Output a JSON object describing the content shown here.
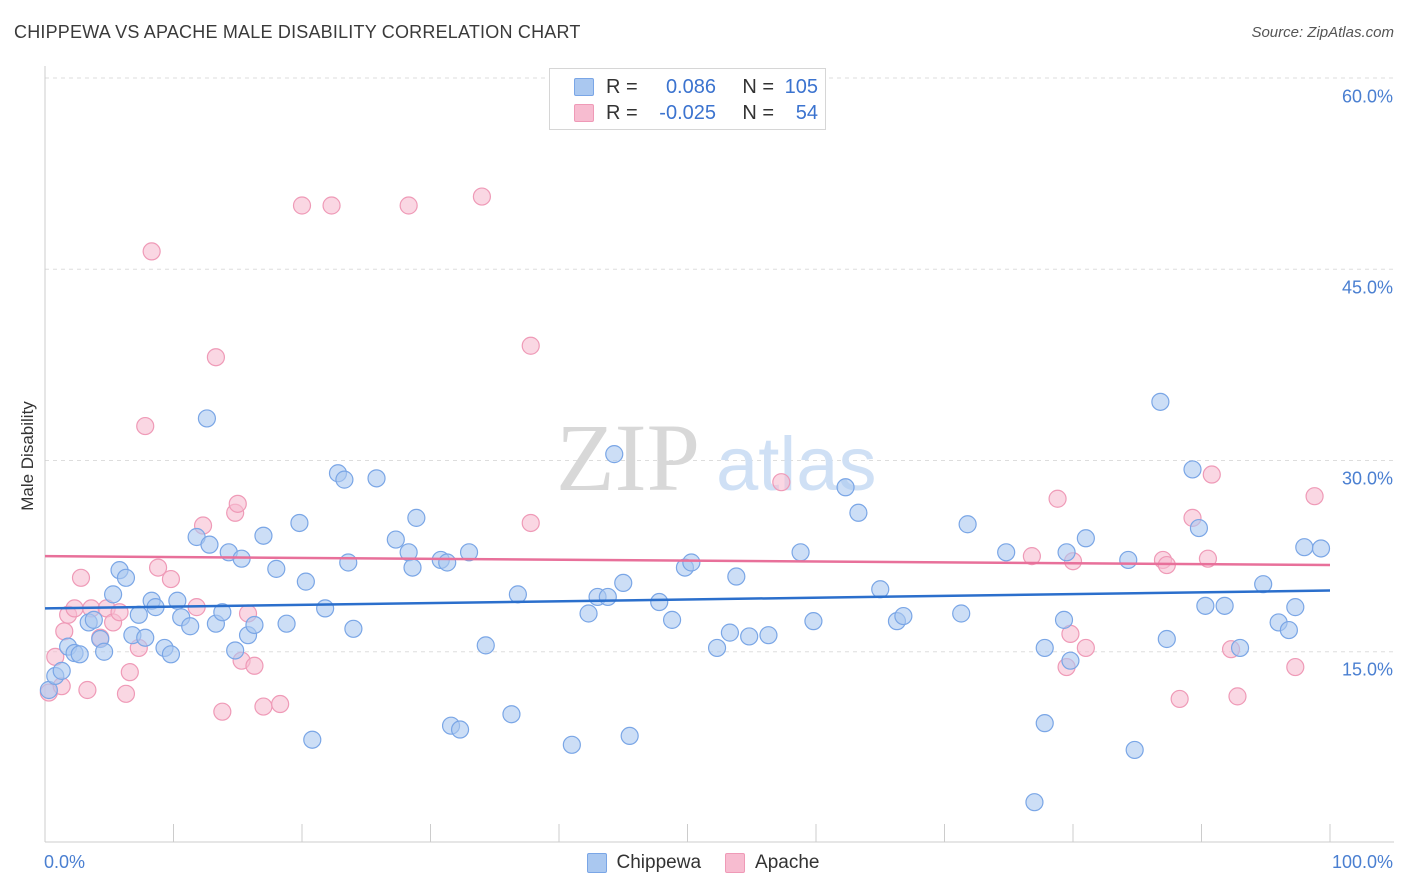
{
  "header": {
    "title": "CHIPPEWA VS APACHE MALE DISABILITY CORRELATION CHART",
    "source": "Source: ZipAtlas.com"
  },
  "legend": {
    "rows": [
      {
        "r_label": "R =",
        "r_value": "0.086",
        "n_label": "N =",
        "n_value": "105"
      },
      {
        "r_label": "R =",
        "r_value": "-0.025",
        "n_label": "N =",
        "n_value": "54"
      }
    ],
    "bottom": [
      "Chippewa",
      "Apache"
    ]
  },
  "watermark": {
    "zip": "ZIP",
    "atlas": "atlas"
  },
  "colors": {
    "chippewa_fill": "#aac8f0",
    "chippewa_stroke": "#7aa6e6",
    "chippewa_line": "#2b6fcc",
    "apache_fill": "#f7bcd0",
    "apache_stroke": "#ef9ab7",
    "apache_line": "#e8709a",
    "tick_text": "#4a7fd1",
    "grid": "#dddddd"
  },
  "chart_data": {
    "type": "scatter",
    "title": "CHIPPEWA VS APACHE MALE DISABILITY CORRELATION CHART",
    "xlabel": "",
    "ylabel": "Male Disability",
    "xlim": [
      0,
      100
    ],
    "ylim": [
      0,
      63
    ],
    "x_tick_labels": [
      "0.0%",
      "100.0%"
    ],
    "y_ticks": [
      15,
      30,
      45,
      60
    ],
    "y_tick_labels": [
      "15.0%",
      "30.0%",
      "45.0%",
      "60.0%"
    ],
    "grid": true,
    "legend_position": "top-center",
    "series": [
      {
        "name": "Chippewa",
        "r": 0.086,
        "n": 105,
        "trend": {
          "y_at_x0": 18.4,
          "y_at_x100": 19.8
        },
        "points": [
          [
            0.3,
            12.0
          ],
          [
            0.8,
            13.1
          ],
          [
            1.3,
            13.5
          ],
          [
            1.8,
            15.4
          ],
          [
            2.3,
            14.9
          ],
          [
            2.7,
            14.8
          ],
          [
            3.4,
            17.3
          ],
          [
            3.8,
            17.5
          ],
          [
            4.3,
            16.0
          ],
          [
            4.6,
            15.0
          ],
          [
            5.3,
            19.5
          ],
          [
            5.8,
            21.4
          ],
          [
            6.3,
            20.8
          ],
          [
            6.8,
            16.3
          ],
          [
            7.3,
            17.9
          ],
          [
            7.8,
            16.1
          ],
          [
            8.3,
            19.0
          ],
          [
            8.6,
            18.5
          ],
          [
            9.3,
            15.3
          ],
          [
            9.8,
            14.8
          ],
          [
            10.3,
            19.0
          ],
          [
            10.6,
            17.7
          ],
          [
            11.3,
            17.0
          ],
          [
            11.8,
            24.0
          ],
          [
            12.6,
            33.3
          ],
          [
            12.8,
            23.4
          ],
          [
            13.3,
            17.2
          ],
          [
            13.8,
            18.1
          ],
          [
            14.3,
            22.8
          ],
          [
            14.8,
            15.1
          ],
          [
            15.3,
            22.3
          ],
          [
            15.8,
            16.3
          ],
          [
            16.3,
            17.1
          ],
          [
            17.0,
            24.1
          ],
          [
            18.0,
            21.5
          ],
          [
            18.8,
            17.2
          ],
          [
            19.8,
            25.1
          ],
          [
            20.3,
            20.5
          ],
          [
            20.8,
            8.1
          ],
          [
            21.8,
            18.4
          ],
          [
            22.8,
            29.0
          ],
          [
            23.3,
            28.5
          ],
          [
            23.6,
            22.0
          ],
          [
            24.0,
            16.8
          ],
          [
            25.8,
            28.6
          ],
          [
            27.3,
            23.8
          ],
          [
            28.3,
            22.8
          ],
          [
            28.6,
            21.6
          ],
          [
            28.9,
            25.5
          ],
          [
            30.8,
            22.2
          ],
          [
            31.3,
            22.0
          ],
          [
            31.6,
            9.2
          ],
          [
            32.3,
            8.9
          ],
          [
            33.0,
            22.8
          ],
          [
            34.3,
            15.5
          ],
          [
            36.3,
            10.1
          ],
          [
            36.8,
            19.5
          ],
          [
            41.0,
            7.7
          ],
          [
            42.3,
            18.0
          ],
          [
            43.0,
            19.3
          ],
          [
            43.8,
            19.3
          ],
          [
            44.3,
            30.5
          ],
          [
            45.0,
            20.4
          ],
          [
            45.5,
            8.4
          ],
          [
            47.8,
            18.9
          ],
          [
            48.8,
            17.5
          ],
          [
            49.8,
            21.6
          ],
          [
            50.3,
            22.0
          ],
          [
            52.3,
            15.3
          ],
          [
            53.3,
            16.5
          ],
          [
            53.8,
            20.9
          ],
          [
            54.8,
            16.2
          ],
          [
            56.3,
            16.3
          ],
          [
            58.8,
            22.8
          ],
          [
            59.8,
            17.4
          ],
          [
            62.3,
            27.9
          ],
          [
            63.3,
            25.9
          ],
          [
            65.0,
            19.9
          ],
          [
            66.3,
            17.4
          ],
          [
            66.8,
            17.8
          ],
          [
            71.3,
            18.0
          ],
          [
            71.8,
            25.0
          ],
          [
            74.8,
            22.8
          ],
          [
            77.0,
            3.2
          ],
          [
            77.8,
            9.4
          ],
          [
            77.8,
            15.3
          ],
          [
            79.3,
            17.5
          ],
          [
            79.5,
            22.8
          ],
          [
            79.8,
            14.3
          ],
          [
            81.0,
            23.9
          ],
          [
            84.3,
            22.2
          ],
          [
            84.8,
            7.3
          ],
          [
            86.8,
            34.6
          ],
          [
            87.3,
            16.0
          ],
          [
            89.3,
            29.3
          ],
          [
            89.8,
            24.7
          ],
          [
            90.3,
            18.6
          ],
          [
            91.8,
            18.6
          ],
          [
            93.0,
            15.3
          ],
          [
            94.8,
            20.3
          ],
          [
            96.0,
            17.3
          ],
          [
            96.8,
            16.7
          ],
          [
            97.3,
            18.5
          ],
          [
            98.0,
            23.2
          ],
          [
            99.3,
            23.1
          ]
        ]
      },
      {
        "name": "Apache",
        "r": -0.025,
        "n": 54,
        "trend": {
          "y_at_x0": 22.5,
          "y_at_x100": 21.8
        },
        "points": [
          [
            0.3,
            11.8
          ],
          [
            0.8,
            14.6
          ],
          [
            1.3,
            12.3
          ],
          [
            1.5,
            16.6
          ],
          [
            1.8,
            17.9
          ],
          [
            2.3,
            18.4
          ],
          [
            2.8,
            20.8
          ],
          [
            3.3,
            12.0
          ],
          [
            3.6,
            18.4
          ],
          [
            4.3,
            16.1
          ],
          [
            4.8,
            18.4
          ],
          [
            5.3,
            17.3
          ],
          [
            5.8,
            18.1
          ],
          [
            6.3,
            11.7
          ],
          [
            6.6,
            13.4
          ],
          [
            7.3,
            15.3
          ],
          [
            7.8,
            32.7
          ],
          [
            8.3,
            46.4
          ],
          [
            8.8,
            21.6
          ],
          [
            9.8,
            20.7
          ],
          [
            11.8,
            18.5
          ],
          [
            12.3,
            24.9
          ],
          [
            13.3,
            38.1
          ],
          [
            13.8,
            10.3
          ],
          [
            14.8,
            25.9
          ],
          [
            15.0,
            26.6
          ],
          [
            15.3,
            14.3
          ],
          [
            15.8,
            18.0
          ],
          [
            16.3,
            13.9
          ],
          [
            17.0,
            10.7
          ],
          [
            18.3,
            10.9
          ],
          [
            20.0,
            50.0
          ],
          [
            22.3,
            50.0
          ],
          [
            28.3,
            50.0
          ],
          [
            34.0,
            50.7
          ],
          [
            37.8,
            25.1
          ],
          [
            37.8,
            39.0
          ],
          [
            57.3,
            28.3
          ],
          [
            76.8,
            22.5
          ],
          [
            78.8,
            27.0
          ],
          [
            79.5,
            13.8
          ],
          [
            79.8,
            16.4
          ],
          [
            80.0,
            22.1
          ],
          [
            81.0,
            15.3
          ],
          [
            87.0,
            22.2
          ],
          [
            87.3,
            21.8
          ],
          [
            88.3,
            11.3
          ],
          [
            89.3,
            25.5
          ],
          [
            90.5,
            22.3
          ],
          [
            90.8,
            28.9
          ],
          [
            92.3,
            15.2
          ],
          [
            92.8,
            11.5
          ],
          [
            97.3,
            13.8
          ],
          [
            98.8,
            27.2
          ]
        ]
      }
    ]
  }
}
